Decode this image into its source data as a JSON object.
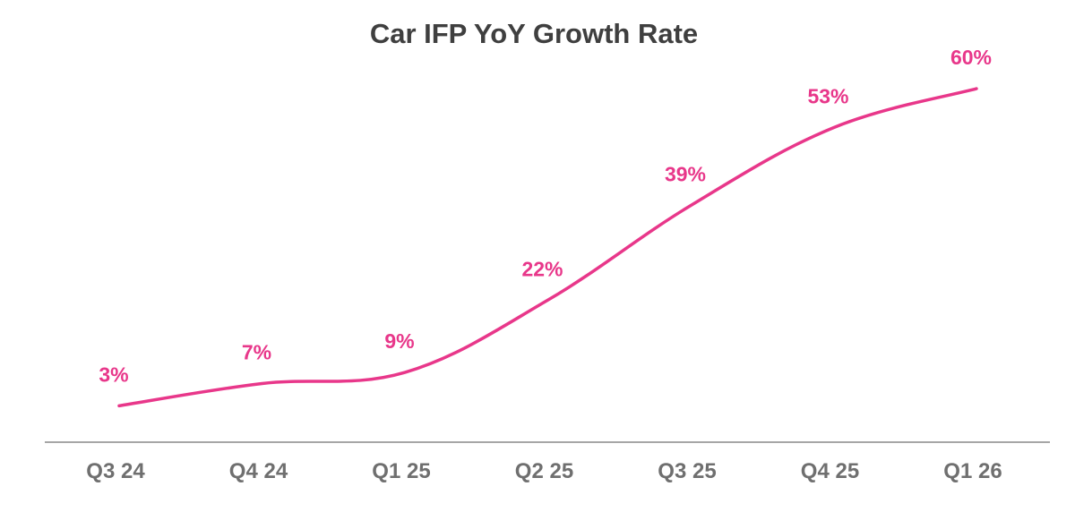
{
  "chart_data": {
    "type": "line",
    "title": "Car IFP YoY Growth Rate",
    "xlabel": "",
    "ylabel": "",
    "categories": [
      "Q3 24",
      "Q4 24",
      "Q1 25",
      "Q2 25",
      "Q3 25",
      "Q4 25",
      "Q1 26"
    ],
    "series": [
      {
        "values": [
          3,
          7,
          9,
          22,
          39,
          53,
          60
        ],
        "labels": [
          "3%",
          "7%",
          "9%",
          "22%",
          "39%",
          "53%",
          "60%"
        ],
        "color": "#e8378a"
      }
    ],
    "ylim": [
      0,
      65
    ],
    "grid": false,
    "legend": "none",
    "axis_color": "#a6a6a6"
  }
}
